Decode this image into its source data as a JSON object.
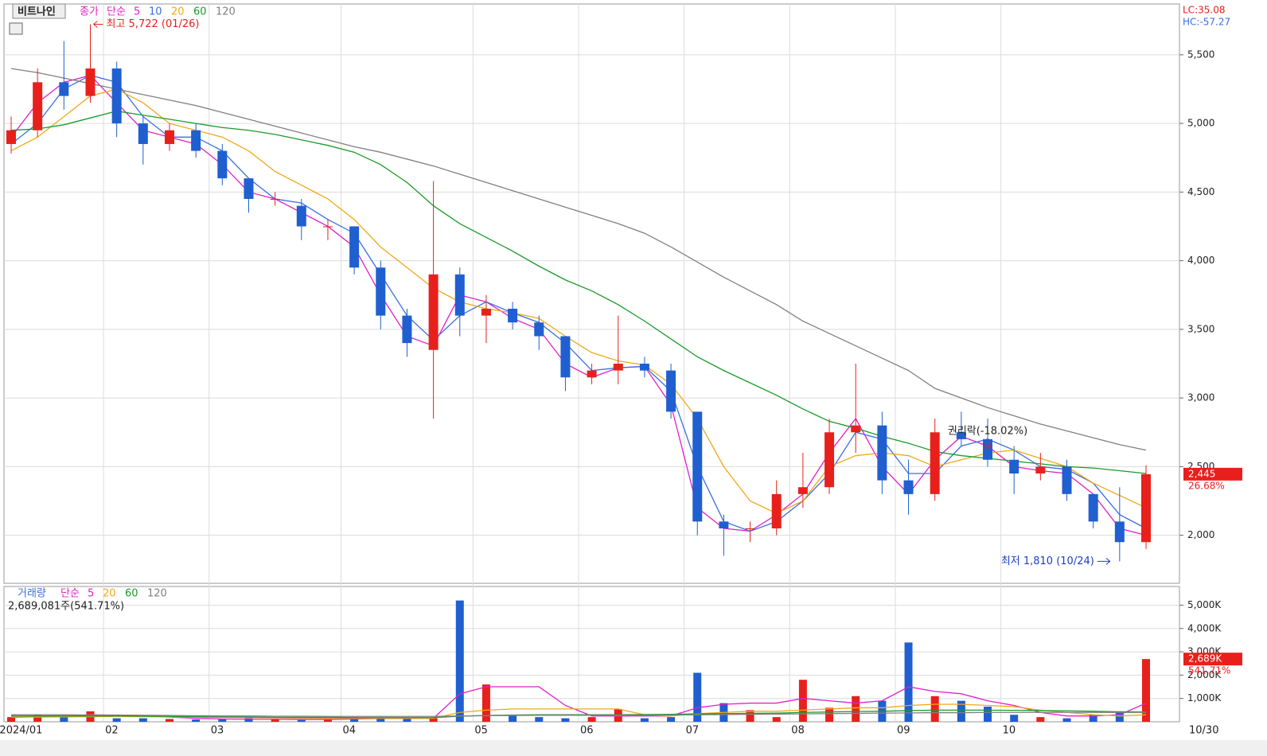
{
  "chart_data": [
    {
      "type": "candlestick",
      "title": "비트나인",
      "legend_prefix": "종가",
      "legend_method": "단순",
      "categories": [
        "2024/01",
        null,
        null,
        null,
        "02",
        null,
        null,
        null,
        "03",
        null,
        null,
        null,
        null,
        "04",
        null,
        null,
        null,
        null,
        "05",
        null,
        null,
        null,
        "06",
        null,
        null,
        null,
        "07",
        null,
        null,
        null,
        "08",
        null,
        null,
        null,
        "09",
        null,
        null,
        null,
        "10",
        null,
        null,
        null,
        null,
        null
      ],
      "x_end_label": "10/30",
      "open": [
        4850,
        4950,
        5300,
        5200,
        5400,
        5000,
        4850,
        4950,
        4800,
        4600,
        4450,
        4400,
        4250,
        4250,
        3950,
        3600,
        3350,
        3900,
        3600,
        3650,
        3550,
        3450,
        3150,
        3200,
        3250,
        3200,
        2900,
        2100,
        2050,
        2050,
        2300,
        2350,
        2750,
        2800,
        2400,
        2300,
        2750,
        2700,
        2550,
        2450,
        2500,
        2300,
        2100,
        1950
      ],
      "high": [
        5050,
        5400,
        5600,
        5722,
        5450,
        5050,
        5000,
        5000,
        4850,
        4600,
        4500,
        4450,
        4300,
        4250,
        4000,
        3650,
        4580,
        3950,
        3750,
        3700,
        3600,
        3450,
        3250,
        3600,
        3300,
        3250,
        2900,
        2150,
        2100,
        2400,
        2600,
        2850,
        3250,
        2900,
        2550,
        2850,
        2900,
        2850,
        2650,
        2600,
        2550,
        2300,
        2350,
        2510
      ],
      "low": [
        4780,
        4900,
        5100,
        5150,
        4900,
        4700,
        4800,
        4750,
        4550,
        4350,
        4400,
        4150,
        4150,
        3900,
        3500,
        3300,
        2850,
        3450,
        3400,
        3500,
        3350,
        3050,
        3100,
        3100,
        3150,
        2850,
        2000,
        1850,
        1950,
        2000,
        2200,
        2300,
        2600,
        2300,
        2150,
        2250,
        2650,
        2500,
        2300,
        2400,
        2250,
        2050,
        1810,
        1900
      ],
      "close": [
        4950,
        5300,
        5200,
        5400,
        5000,
        4850,
        4950,
        4800,
        4600,
        4450,
        4450,
        4250,
        4250,
        3950,
        3600,
        3400,
        3900,
        3600,
        3650,
        3550,
        3450,
        3150,
        3200,
        3250,
        3200,
        2900,
        2100,
        2050,
        2050,
        2300,
        2350,
        2750,
        2800,
        2400,
        2300,
        2750,
        2700,
        2550,
        2450,
        2500,
        2300,
        2100,
        1950,
        2445
      ],
      "up_color": "#e8201c",
      "down_color": "#1f5fd0",
      "series": [
        {
          "name": "5",
          "color": "#e020c8",
          "values": [
            4900,
            5150,
            5300,
            5350,
            5150,
            4950,
            4900,
            4850,
            4700,
            4500,
            4450,
            4350,
            4250,
            4100,
            3750,
            3450,
            3380,
            3750,
            3700,
            3580,
            3500,
            3250,
            3150,
            3220,
            3230,
            2950,
            2200,
            2050,
            2030,
            2150,
            2300,
            2600,
            2850,
            2500,
            2300,
            2550,
            2720,
            2650,
            2500,
            2470,
            2450,
            2300,
            2050,
            2000
          ]
        },
        {
          "name": "10",
          "color": "#3a6fe0",
          "values": [
            4850,
            5000,
            5250,
            5350,
            5300,
            5050,
            4900,
            4900,
            4800,
            4600,
            4450,
            4420,
            4300,
            4200,
            3900,
            3600,
            3420,
            3600,
            3700,
            3620,
            3550,
            3400,
            3200,
            3220,
            3230,
            3050,
            2500,
            2100,
            2030,
            2100,
            2250,
            2450,
            2750,
            2700,
            2450,
            2450,
            2650,
            2700,
            2620,
            2500,
            2480,
            2380,
            2150,
            2050
          ]
        },
        {
          "name": "20",
          "color": "#f0a818",
          "values": [
            4800,
            4900,
            5050,
            5200,
            5250,
            5150,
            5000,
            4950,
            4900,
            4800,
            4650,
            4550,
            4450,
            4300,
            4100,
            3950,
            3800,
            3700,
            3650,
            3620,
            3580,
            3450,
            3330,
            3270,
            3240,
            3100,
            2850,
            2500,
            2250,
            2160,
            2250,
            2500,
            2580,
            2600,
            2580,
            2500,
            2550,
            2600,
            2620,
            2560,
            2500,
            2380,
            2290,
            2200
          ]
        },
        {
          "name": "60",
          "color": "#1a9a2a",
          "values": [
            4950,
            4960,
            4990,
            5040,
            5090,
            5060,
            5030,
            5000,
            4970,
            4950,
            4920,
            4880,
            4840,
            4790,
            4700,
            4570,
            4400,
            4270,
            4170,
            4070,
            3960,
            3860,
            3780,
            3680,
            3560,
            3430,
            3300,
            3200,
            3110,
            3020,
            2920,
            2830,
            2780,
            2720,
            2670,
            2610,
            2580,
            2560,
            2540,
            2520,
            2500,
            2490,
            2470,
            2450
          ]
        },
        {
          "name": "120",
          "color": "#808080",
          "values": [
            5400,
            5370,
            5330,
            5290,
            5250,
            5210,
            5170,
            5130,
            5080,
            5030,
            4980,
            4930,
            4880,
            4830,
            4790,
            4740,
            4690,
            4630,
            4570,
            4510,
            4450,
            4390,
            4330,
            4270,
            4200,
            4100,
            3990,
            3880,
            3780,
            3680,
            3560,
            3470,
            3380,
            3290,
            3200,
            3070,
            3000,
            2930,
            2870,
            2810,
            2760,
            2710,
            2660,
            2620
          ]
        }
      ],
      "ylim": [
        1650,
        5870
      ],
      "yticks": [
        {
          "value": 2000,
          "label": "2,000"
        },
        {
          "value": 2500,
          "label": "2,500"
        },
        {
          "value": 3000,
          "label": "3,000"
        },
        {
          "value": 3500,
          "label": "3,500"
        },
        {
          "value": 4000,
          "label": "4,000"
        },
        {
          "value": 4500,
          "label": "4,500"
        },
        {
          "value": 5000,
          "label": "5,000"
        },
        {
          "value": 5500,
          "label": "5,500"
        }
      ],
      "annotations": [
        {
          "text": "최고 5,722 (01/26)",
          "index": 3,
          "value": 5722
        },
        {
          "text": "최저 1,810 (10/24)",
          "index": 42,
          "value": 1810
        },
        {
          "text": "권리락(-18.02%)",
          "index": 37,
          "value": 2850
        }
      ],
      "lc": "LC:35.08",
      "hc": "HC:-57.27",
      "last_label": "2,445",
      "last_change": "26.68%",
      "last_value": 2445
    },
    {
      "type": "volume",
      "title": "거래량",
      "legend_method": "단순",
      "info": "2,689,081주(541.71%)",
      "values": [
        200,
        300,
        250,
        450,
        150,
        150,
        120,
        100,
        100,
        150,
        100,
        80,
        120,
        200,
        150,
        120,
        150,
        5200,
        1600,
        300,
        200,
        150,
        200,
        550,
        150,
        200,
        2100,
        800,
        500,
        200,
        1800,
        600,
        1100,
        900,
        3400,
        1100,
        900,
        650,
        300,
        200,
        150,
        300,
        400,
        2689
      ],
      "series": [
        {
          "name": "5",
          "color": "#e020c8",
          "values": [
            180,
            220,
            240,
            300,
            280,
            250,
            200,
            150,
            120,
            110,
            110,
            100,
            100,
            120,
            140,
            140,
            150,
            1200,
            1500,
            1500,
            1500,
            700,
            250,
            250,
            250,
            250,
            600,
            750,
            800,
            800,
            1000,
            900,
            800,
            900,
            1500,
            1300,
            1200,
            900,
            700,
            400,
            250,
            250,
            300,
            800
          ]
        },
        {
          "name": "20",
          "color": "#f0a818",
          "values": [
            200,
            200,
            210,
            220,
            230,
            220,
            210,
            200,
            190,
            180,
            170,
            160,
            150,
            150,
            150,
            150,
            150,
            400,
            500,
            550,
            550,
            550,
            550,
            550,
            300,
            250,
            350,
            400,
            450,
            450,
            500,
            550,
            600,
            600,
            700,
            750,
            750,
            700,
            650,
            500,
            400,
            300,
            250,
            300
          ]
        },
        {
          "name": "60",
          "color": "#1a9a2a",
          "values": [
            250,
            250,
            250,
            250,
            250,
            240,
            230,
            220,
            210,
            200,
            190,
            190,
            190,
            180,
            180,
            180,
            180,
            240,
            270,
            290,
            300,
            300,
            300,
            300,
            310,
            320,
            340,
            350,
            360,
            370,
            400,
            420,
            440,
            450,
            480,
            500,
            500,
            500,
            490,
            480,
            470,
            450,
            430,
            420
          ]
        },
        {
          "name": "120",
          "color": "#808080",
          "values": [
            300,
            300,
            300,
            290,
            290,
            280,
            270,
            260,
            250,
            250,
            240,
            240,
            230,
            230,
            230,
            230,
            230,
            250,
            260,
            270,
            280,
            280,
            280,
            280,
            280,
            290,
            300,
            310,
            320,
            330,
            340,
            350,
            360,
            370,
            380,
            390,
            390,
            400,
            400,
            400,
            400,
            400,
            400,
            400
          ]
        }
      ],
      "ylim": [
        0,
        5800
      ],
      "yticks": [
        {
          "value": 1000,
          "label": "1,000K"
        },
        {
          "value": 2000,
          "label": "2,000K"
        },
        {
          "value": 3000,
          "label": "3,000K"
        },
        {
          "value": 4000,
          "label": "4,000K"
        },
        {
          "value": 5000,
          "label": "5,000K"
        }
      ],
      "last_label": "2,689K",
      "last_change": "541.71%"
    }
  ]
}
